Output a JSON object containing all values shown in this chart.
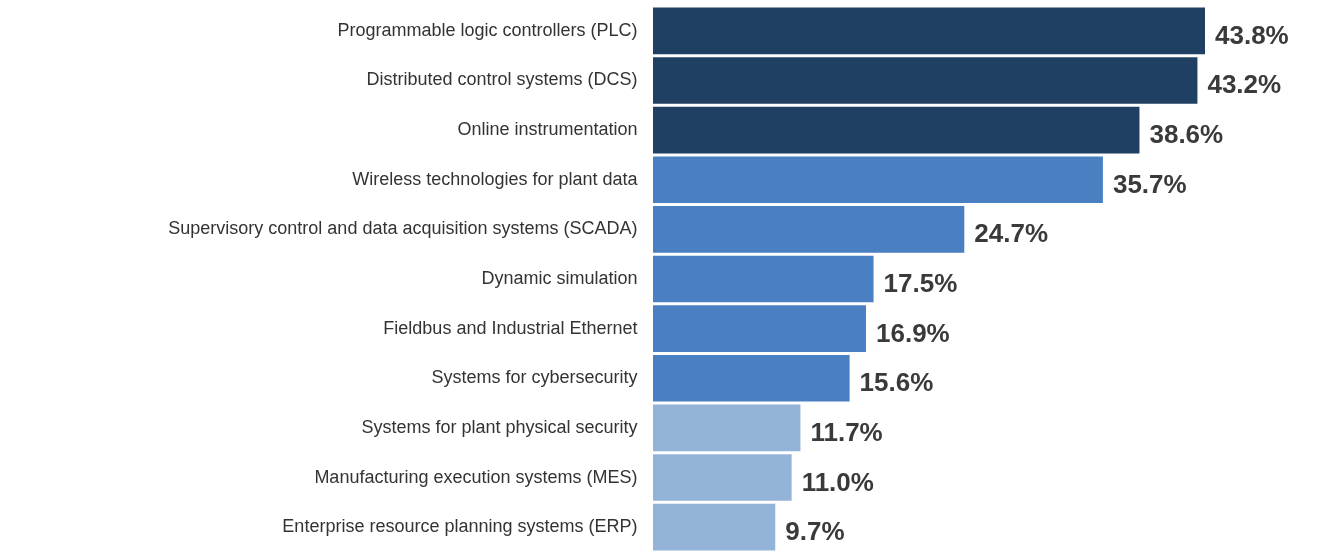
{
  "chart_data": {
    "type": "bar",
    "orientation": "horizontal",
    "categories": [
      "Programmable logic controllers (PLC)",
      "Distributed control systems (DCS)",
      "Online instrumentation",
      "Wireless technologies for plant data",
      "Supervisory control and data acquisition systems (SCADA)",
      "Dynamic simulation",
      "Fieldbus and Industrial Ethernet",
      "Systems for cybersecurity",
      "Systems for plant physical security",
      "Manufacturing execution systems (MES)",
      "Enterprise resource planning systems (ERP)"
    ],
    "values": [
      43.8,
      43.2,
      38.6,
      35.7,
      24.7,
      17.5,
      16.9,
      15.6,
      11.7,
      11.0,
      9.7
    ],
    "value_labels": [
      "43.8%",
      "43.2%",
      "38.6%",
      "35.7%",
      "24.7%",
      "17.5%",
      "16.9%",
      "15.6%",
      "11.7%",
      "11.0%",
      "9.7%"
    ],
    "colors": [
      "#1f3f63",
      "#1f3f63",
      "#1f3f63",
      "#4a80c2",
      "#4a80c2",
      "#4a80c2",
      "#4a80c2",
      "#4a80c2",
      "#94b3d9",
      "#94b3d9",
      "#94b3d9"
    ]
  }
}
